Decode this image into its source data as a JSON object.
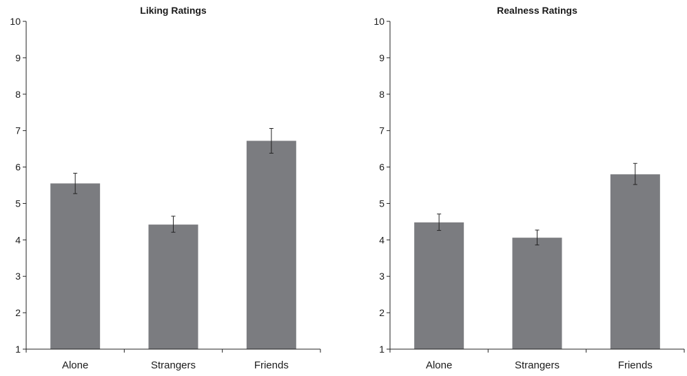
{
  "chart_data": [
    {
      "type": "bar",
      "title": "Liking Ratings",
      "categories": [
        "Alone",
        "Strangers",
        "Friends"
      ],
      "values": [
        5.55,
        4.42,
        6.72
      ],
      "errors": [
        [
          5.27,
          5.83
        ],
        [
          4.21,
          4.65
        ],
        [
          6.38,
          7.06
        ]
      ],
      "ylim": [
        1,
        10
      ],
      "yticks": [
        "1",
        "2",
        "3",
        "4",
        "5",
        "6",
        "7",
        "8",
        "9",
        "10"
      ],
      "xlabel": "",
      "ylabel": "",
      "grid": false,
      "bar_color": "#7b7c80"
    },
    {
      "type": "bar",
      "title": "Realness Ratings",
      "categories": [
        "Alone",
        "Strangers",
        "Friends"
      ],
      "values": [
        4.48,
        4.06,
        5.8
      ],
      "errors": [
        [
          4.26,
          4.71
        ],
        [
          3.86,
          4.27
        ],
        [
          5.52,
          6.1
        ]
      ],
      "ylim": [
        1,
        10
      ],
      "yticks": [
        "1",
        "2",
        "3",
        "4",
        "5",
        "6",
        "7",
        "8",
        "9",
        "10"
      ],
      "xlabel": "",
      "ylabel": "",
      "grid": false,
      "bar_color": "#7b7c80"
    }
  ]
}
